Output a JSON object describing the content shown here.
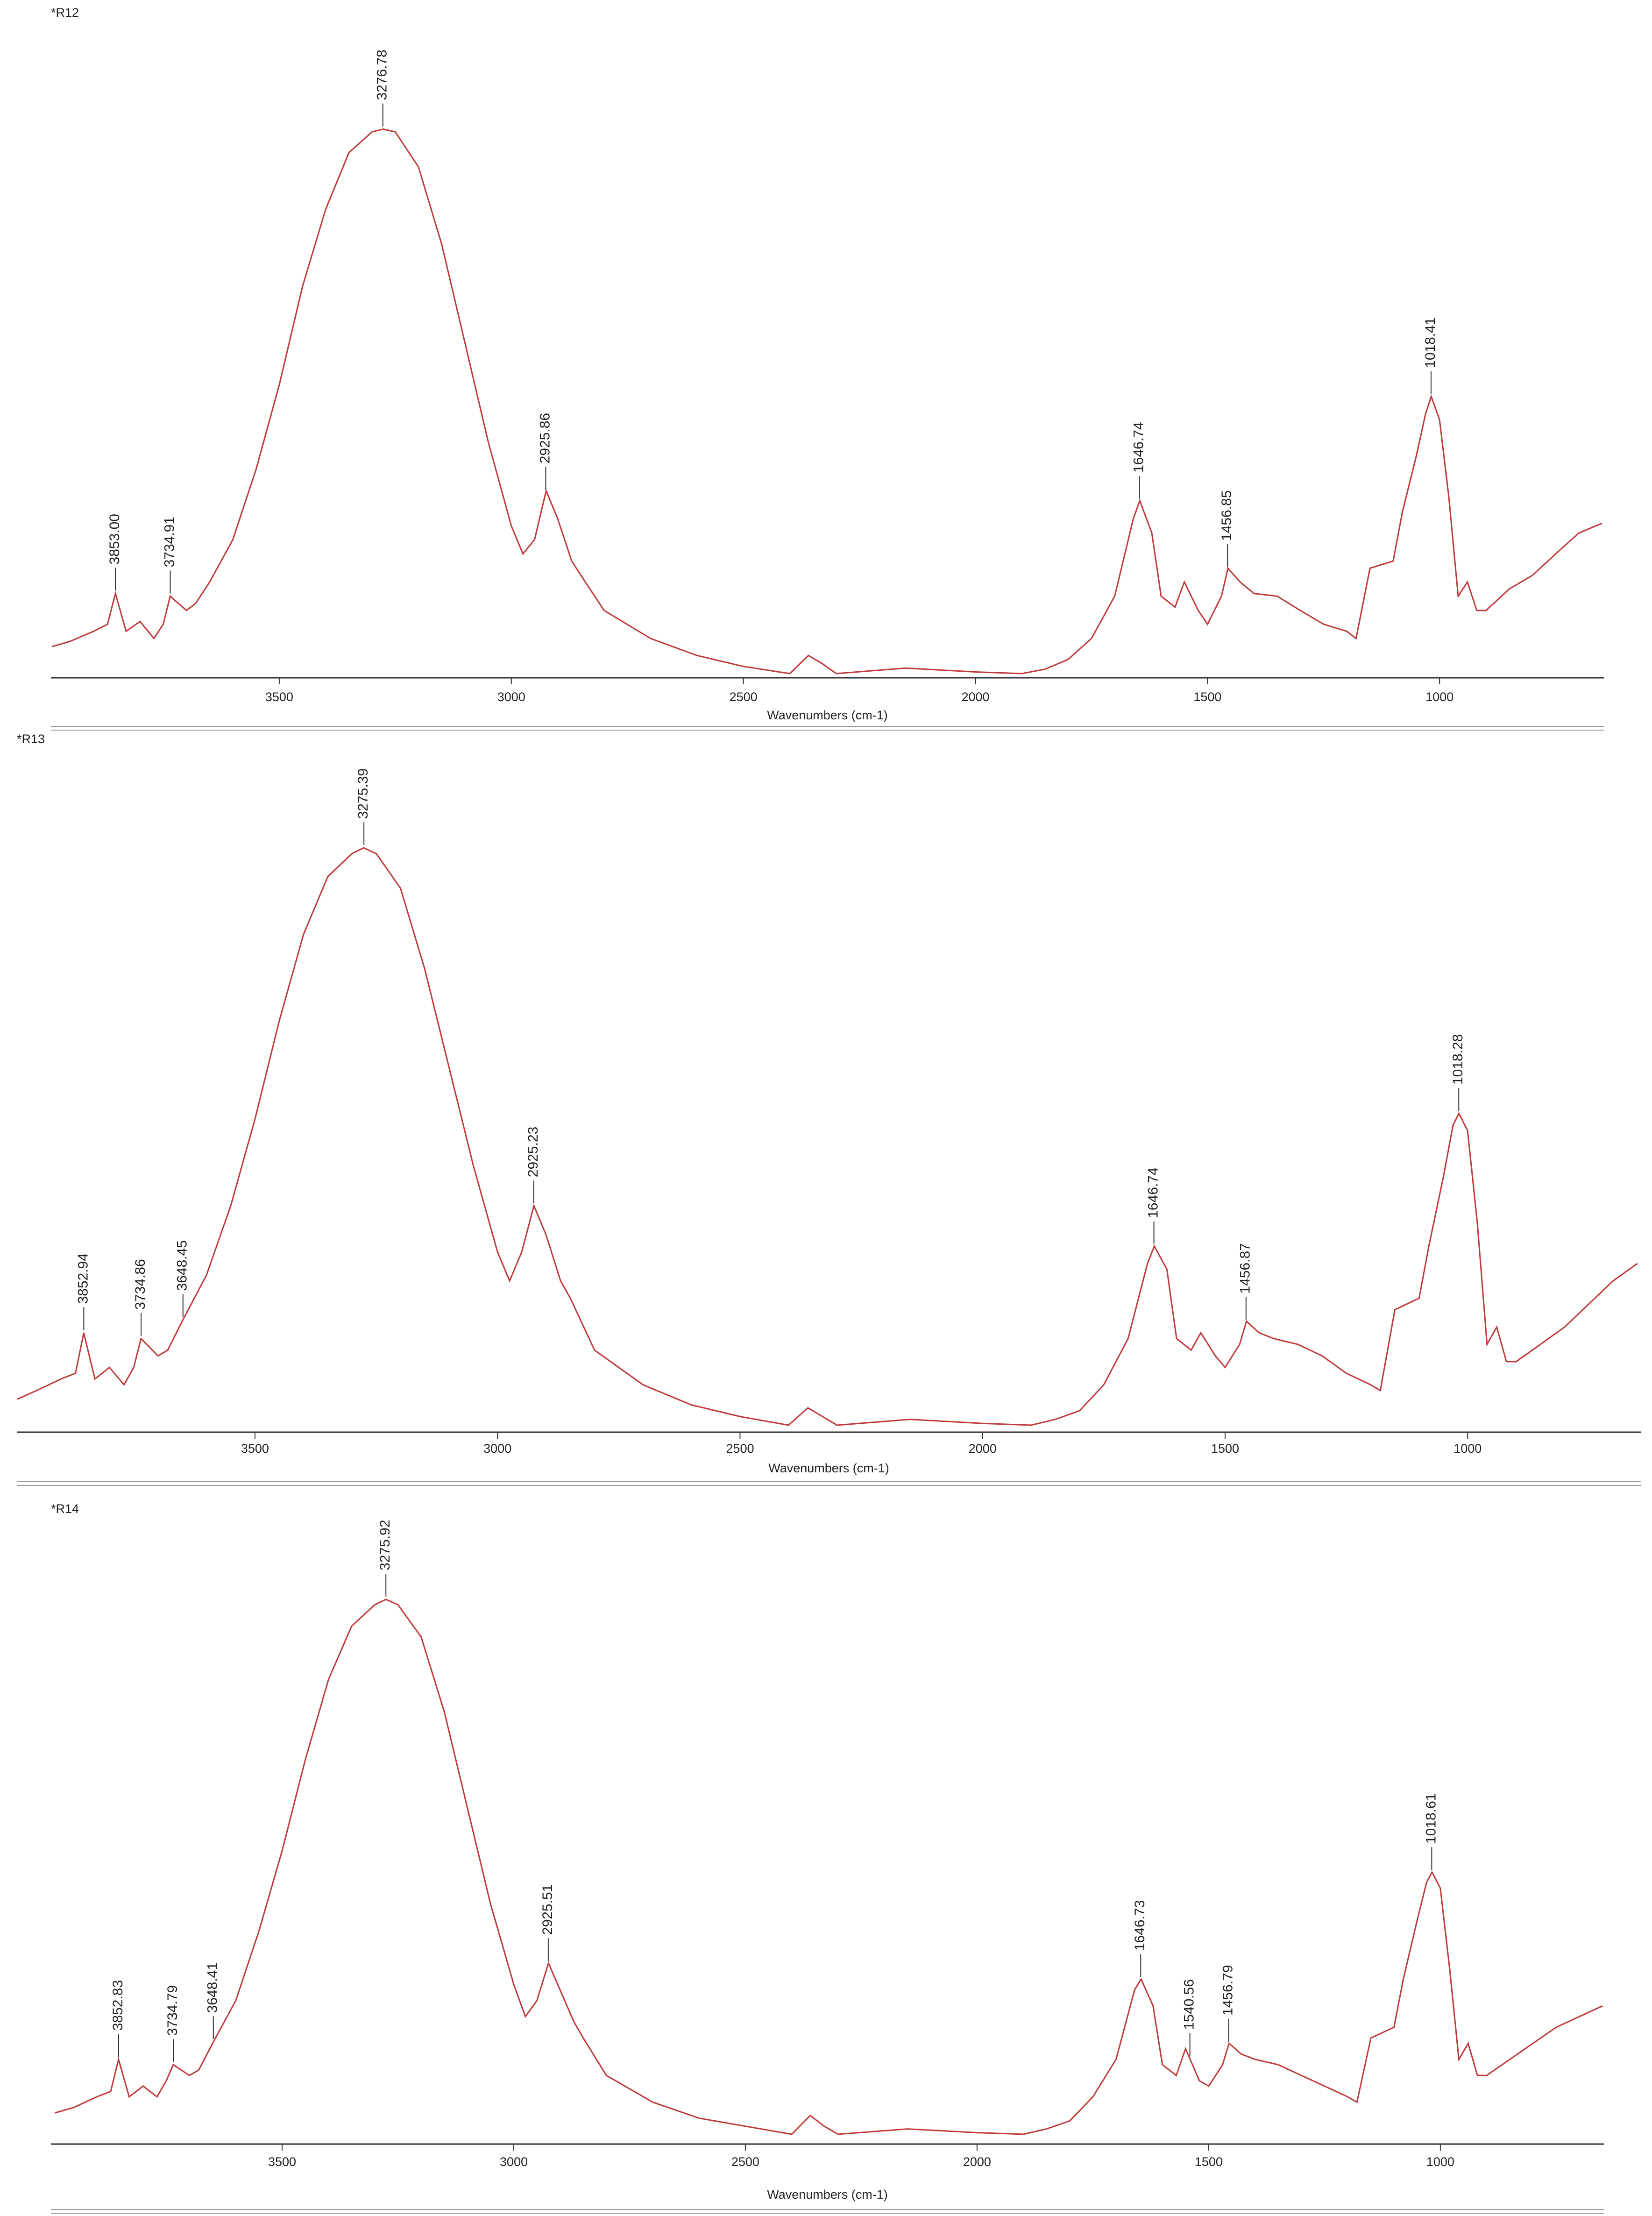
{
  "chart_data": [
    {
      "type": "line",
      "title": "*R12",
      "xlabel": "Wavenumbers (cm-1)",
      "color": "#c0393b",
      "xlim": [
        3992,
        646
      ],
      "ylim": [
        0,
        100
      ],
      "xticks": [
        3500,
        3000,
        2500,
        2000,
        1500,
        1000
      ],
      "x": [
        3990,
        3950,
        3900,
        3870,
        3853,
        3830,
        3800,
        3770,
        3750,
        3735,
        3700,
        3680,
        3650,
        3600,
        3550,
        3500,
        3450,
        3400,
        3350,
        3300,
        3276,
        3250,
        3200,
        3150,
        3100,
        3050,
        3000,
        2975,
        2950,
        2925,
        2900,
        2870,
        2850,
        2800,
        2700,
        2600,
        2500,
        2400,
        2360,
        2330,
        2300,
        2150,
        2000,
        1900,
        1850,
        1800,
        1750,
        1700,
        1660,
        1646,
        1620,
        1600,
        1570,
        1550,
        1520,
        1500,
        1470,
        1456,
        1430,
        1400,
        1350,
        1300,
        1250,
        1200,
        1180,
        1150,
        1100,
        1080,
        1050,
        1030,
        1018,
        1000,
        980,
        960,
        940,
        920,
        900,
        850,
        800,
        750,
        700,
        650
      ],
      "values": [
        4.9,
        5.9,
        7.7,
        9.0,
        14.6,
        7.7,
        9.5,
        6.4,
        9.0,
        14.1,
        11.5,
        12.8,
        16.7,
        24.4,
        37.2,
        52.6,
        70.5,
        84.6,
        94.9,
        98.7,
        99.2,
        98.7,
        92.3,
        78.2,
        60.3,
        42.3,
        26.9,
        21.8,
        24.4,
        33.3,
        28.2,
        20.5,
        17.9,
        11.5,
        6.4,
        3.3,
        1.3,
        0,
        3.3,
        1.8,
        0,
        1.0,
        0.3,
        0,
        0.8,
        2.6,
        6.4,
        14.1,
        28.2,
        31.5,
        25.6,
        14.1,
        12.1,
        16.7,
        11.5,
        9.0,
        14.1,
        19.2,
        16.7,
        14.6,
        14.1,
        11.5,
        9.0,
        7.7,
        6.4,
        19.2,
        20.5,
        29.5,
        39.7,
        47.4,
        50.5,
        46.2,
        32.1,
        14.1,
        16.7,
        11.5,
        11.5,
        15.4,
        17.9,
        21.8,
        25.6,
        27.4
      ],
      "peaks": [
        {
          "value": 3853.0,
          "label": "3853.00"
        },
        3734.91,
        3276.78,
        2925.86,
        1646.74,
        1456.85,
        1018.41
      ]
    },
    {
      "type": "line",
      "title": "*R13",
      "xlabel": "Wavenumbers (cm-1)",
      "color": "#c0393b",
      "xlim": [
        3991,
        643
      ],
      "ylim": [
        0,
        100
      ],
      "xticks": [
        3500,
        3000,
        2500,
        2000,
        1500,
        1000
      ],
      "x": [
        3990,
        3950,
        3900,
        3870,
        3853,
        3830,
        3800,
        3770,
        3750,
        3735,
        3700,
        3680,
        3650,
        3600,
        3550,
        3500,
        3450,
        3400,
        3350,
        3300,
        3276,
        3250,
        3200,
        3150,
        3100,
        3050,
        3000,
        2975,
        2950,
        2925,
        2900,
        2870,
        2850,
        2800,
        2700,
        2600,
        2500,
        2400,
        2360,
        2330,
        2300,
        2150,
        2000,
        1900,
        1850,
        1800,
        1750,
        1700,
        1660,
        1646,
        1620,
        1600,
        1570,
        1550,
        1520,
        1500,
        1470,
        1456,
        1430,
        1400,
        1350,
        1300,
        1250,
        1200,
        1180,
        1150,
        1100,
        1080,
        1050,
        1030,
        1018,
        1000,
        980,
        960,
        940,
        920,
        900,
        850,
        800,
        750,
        700,
        650
      ],
      "values": [
        4.5,
        6,
        8,
        9,
        16,
        8,
        10,
        7,
        10,
        15,
        12,
        13,
        18,
        26,
        38,
        53,
        70,
        85,
        95,
        99,
        100,
        99,
        93,
        79,
        62,
        45,
        30,
        25,
        30,
        38,
        33,
        25,
        22,
        13,
        7,
        3.5,
        1.5,
        0,
        3,
        1.5,
        0,
        1,
        0.3,
        0,
        1,
        2.5,
        7,
        15,
        28,
        31,
        27,
        15,
        13,
        16,
        12,
        10,
        14,
        18,
        16,
        15,
        14,
        12,
        9,
        7,
        6,
        20,
        22,
        31,
        43,
        52,
        54,
        51,
        35,
        14,
        17,
        11,
        11,
        14,
        17,
        21,
        25,
        28
      ],
      "peaks": [
        3852.94,
        3734.86,
        3648.45,
        3275.39,
        2925.23,
        1646.74,
        1456.87,
        1018.28
      ]
    },
    {
      "type": "line",
      "title": "*R14",
      "xlabel": "Wavenumbers (cm-1)",
      "color": "#c0393b",
      "xlim": [
        3999,
        647
      ],
      "ylim": [
        0,
        100
      ],
      "xticks": [
        3500,
        3000,
        2500,
        2000,
        1500,
        1000
      ],
      "x": [
        3990,
        3950,
        3900,
        3870,
        3853,
        3830,
        3800,
        3770,
        3750,
        3735,
        3700,
        3680,
        3650,
        3600,
        3550,
        3500,
        3450,
        3400,
        3350,
        3300,
        3276,
        3250,
        3200,
        3150,
        3100,
        3050,
        3000,
        2975,
        2950,
        2925,
        2900,
        2870,
        2850,
        2800,
        2700,
        2600,
        2500,
        2400,
        2360,
        2330,
        2300,
        2150,
        2000,
        1900,
        1850,
        1800,
        1750,
        1700,
        1660,
        1646,
        1620,
        1600,
        1570,
        1550,
        1520,
        1500,
        1470,
        1456,
        1430,
        1400,
        1350,
        1300,
        1250,
        1200,
        1180,
        1150,
        1100,
        1080,
        1050,
        1030,
        1018,
        1000,
        980,
        960,
        940,
        920,
        900,
        850,
        800,
        750,
        700,
        650
      ],
      "values": [
        4,
        5,
        7,
        8,
        14,
        7,
        9,
        7,
        10,
        13,
        11,
        12,
        17,
        25,
        38,
        53,
        70,
        85,
        95,
        99,
        100,
        99,
        93,
        79,
        61,
        43,
        28,
        22,
        25,
        32,
        27,
        21,
        18,
        11,
        6,
        3,
        1.5,
        0,
        3.5,
        1.5,
        0,
        1,
        0.3,
        0,
        1,
        2.5,
        7,
        14,
        27,
        29,
        24,
        13,
        11,
        16,
        10,
        9,
        13,
        17,
        15,
        14,
        13,
        11,
        9,
        7,
        6,
        18,
        20,
        29,
        40,
        47,
        49,
        46,
        31,
        14,
        17,
        11,
        11,
        14,
        17,
        20,
        22,
        24
      ],
      "peaks": [
        3852.83,
        3734.79,
        3648.41,
        3275.92,
        2925.51,
        1646.73,
        1540.56,
        1456.79,
        1018.61
      ]
    }
  ]
}
